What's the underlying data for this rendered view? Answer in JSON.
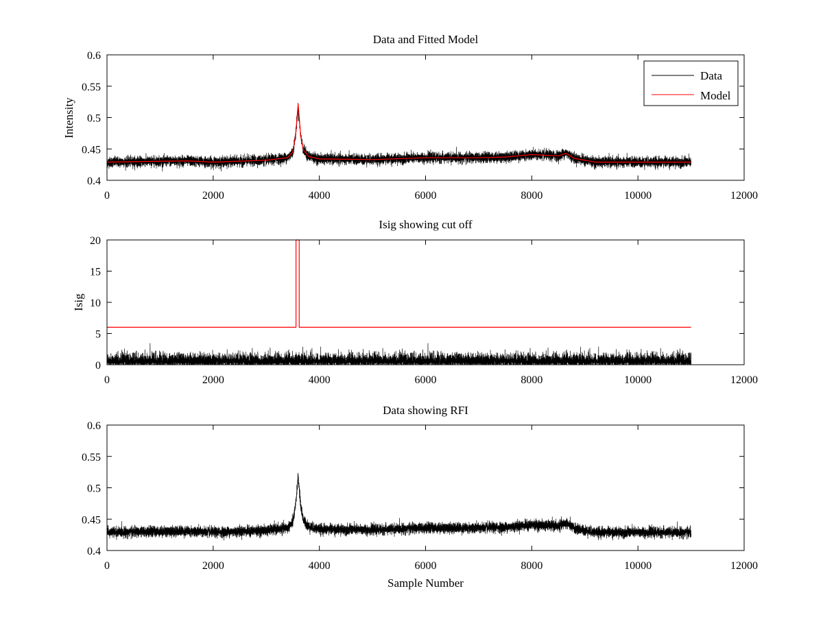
{
  "figure": {
    "background": "#ffffff"
  },
  "colors": {
    "data": "#000000",
    "model": "#ff0000",
    "axes": "#000000"
  },
  "chart_data": [
    {
      "type": "line",
      "title": "Data and Fitted Model",
      "xlabel": "",
      "ylabel": "Intensity",
      "xlim": [
        0,
        12000
      ],
      "ylim": [
        0.4,
        0.6
      ],
      "xticks": [
        0,
        2000,
        4000,
        6000,
        8000,
        10000,
        12000
      ],
      "xtick_labels": [
        "0",
        "2000",
        "4000",
        "6000",
        "8000",
        "10000",
        "12000"
      ],
      "yticks": [
        0.4,
        0.45,
        0.5,
        0.55,
        0.6
      ],
      "ytick_labels": [
        "0.4",
        "0.45",
        "0.5",
        "0.55",
        "0.6"
      ],
      "legend": {
        "position": "top-right",
        "entries": [
          "Data",
          "Model"
        ]
      },
      "series": [
        {
          "name": "Data",
          "color": "#000000",
          "kind": "noisy",
          "n_samples": 11000,
          "noise": 0.004,
          "x": [
            0,
            1500,
            2000,
            3000,
            3400,
            3500,
            3550,
            3600,
            3650,
            3700,
            3800,
            4000,
            5000,
            6000,
            7000,
            7500,
            8000,
            8500,
            8650,
            8800,
            9200,
            10000,
            11000
          ],
          "y": [
            0.429,
            0.431,
            0.429,
            0.432,
            0.436,
            0.445,
            0.47,
            0.516,
            0.47,
            0.448,
            0.438,
            0.434,
            0.433,
            0.436,
            0.436,
            0.437,
            0.441,
            0.439,
            0.444,
            0.435,
            0.429,
            0.429,
            0.429
          ]
        },
        {
          "name": "Model",
          "color": "#ff0000",
          "kind": "smooth",
          "x": [
            0,
            1500,
            2000,
            3000,
            3400,
            3500,
            3550,
            3600,
            3650,
            3700,
            3800,
            4000,
            5000,
            6000,
            7000,
            7500,
            8000,
            8500,
            8650,
            8800,
            9200,
            10000,
            11000
          ],
          "y": [
            0.429,
            0.431,
            0.429,
            0.432,
            0.436,
            0.445,
            0.47,
            0.522,
            0.47,
            0.448,
            0.438,
            0.434,
            0.433,
            0.436,
            0.436,
            0.437,
            0.441,
            0.439,
            0.443,
            0.435,
            0.429,
            0.429,
            0.429
          ]
        }
      ]
    },
    {
      "type": "line",
      "title": "Isig showing cut off",
      "xlabel": "",
      "ylabel": "Isig",
      "xlim": [
        0,
        12000
      ],
      "ylim": [
        0,
        20
      ],
      "xticks": [
        0,
        2000,
        4000,
        6000,
        8000,
        10000,
        12000
      ],
      "xtick_labels": [
        "0",
        "2000",
        "4000",
        "6000",
        "8000",
        "10000",
        "12000"
      ],
      "yticks": [
        0,
        5,
        10,
        15,
        20
      ],
      "ytick_labels": [
        "0",
        "5",
        "10",
        "15",
        "20"
      ],
      "series": [
        {
          "name": "Isig",
          "color": "#000000",
          "kind": "abs-noise",
          "n_samples": 11000,
          "scale": 0.8,
          "max": 4,
          "x_range": [
            0,
            11000
          ]
        },
        {
          "name": "Cut off",
          "color": "#ff0000",
          "kind": "step",
          "x": [
            0,
            3560,
            3560,
            3620,
            3620,
            11000
          ],
          "y": [
            6,
            6,
            20,
            20,
            6,
            6
          ]
        }
      ]
    },
    {
      "type": "line",
      "title": "Data showing RFI",
      "xlabel": "Sample Number",
      "ylabel": "",
      "xlim": [
        0,
        12000
      ],
      "ylim": [
        0.4,
        0.6
      ],
      "xticks": [
        0,
        2000,
        4000,
        6000,
        8000,
        10000,
        12000
      ],
      "xtick_labels": [
        "0",
        "2000",
        "4000",
        "6000",
        "8000",
        "10000",
        "12000"
      ],
      "yticks": [
        0.4,
        0.45,
        0.5,
        0.55,
        0.6
      ],
      "ytick_labels": [
        "0.4",
        "0.45",
        "0.5",
        "0.55",
        "0.6"
      ],
      "series": [
        {
          "name": "Data",
          "color": "#000000",
          "kind": "noisy",
          "n_samples": 11000,
          "noise": 0.004,
          "x": [
            0,
            1500,
            2000,
            3000,
            3400,
            3500,
            3550,
            3600,
            3650,
            3700,
            3800,
            4000,
            5000,
            6000,
            7000,
            7500,
            8000,
            8500,
            8650,
            8800,
            9200,
            10000,
            11000
          ],
          "y": [
            0.429,
            0.431,
            0.429,
            0.432,
            0.436,
            0.445,
            0.47,
            0.518,
            0.47,
            0.448,
            0.438,
            0.434,
            0.433,
            0.436,
            0.436,
            0.437,
            0.441,
            0.439,
            0.444,
            0.435,
            0.429,
            0.429,
            0.429
          ]
        }
      ]
    }
  ]
}
